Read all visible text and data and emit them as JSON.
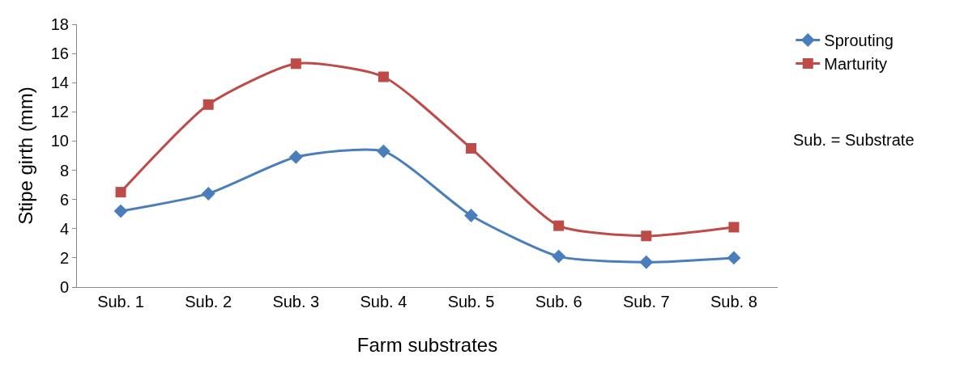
{
  "chart_data": {
    "type": "line",
    "xlabel": "Farm substrates",
    "ylabel": "Stipe girth (mm)",
    "categories": [
      "Sub. 1",
      "Sub. 2",
      "Sub. 3",
      "Sub. 4",
      "Sub. 5",
      "Sub. 6",
      "Sub. 7",
      "Sub. 8"
    ],
    "series": [
      {
        "name": "Sprouting",
        "color": "#4a7ebb",
        "marker": "diamond",
        "values": [
          5.2,
          6.4,
          8.9,
          9.3,
          4.9,
          2.1,
          1.7,
          2.0
        ]
      },
      {
        "name": "Marturity",
        "color": "#be4b48",
        "marker": "square",
        "values": [
          6.5,
          12.5,
          15.3,
          14.4,
          9.5,
          4.2,
          3.5,
          4.1
        ]
      }
    ],
    "ylim": [
      0,
      18
    ],
    "yticks": [
      0,
      2,
      4,
      6,
      8,
      10,
      12,
      14,
      16,
      18
    ],
    "legend": "right",
    "annotations": [
      "Sub. = Substrate"
    ]
  }
}
